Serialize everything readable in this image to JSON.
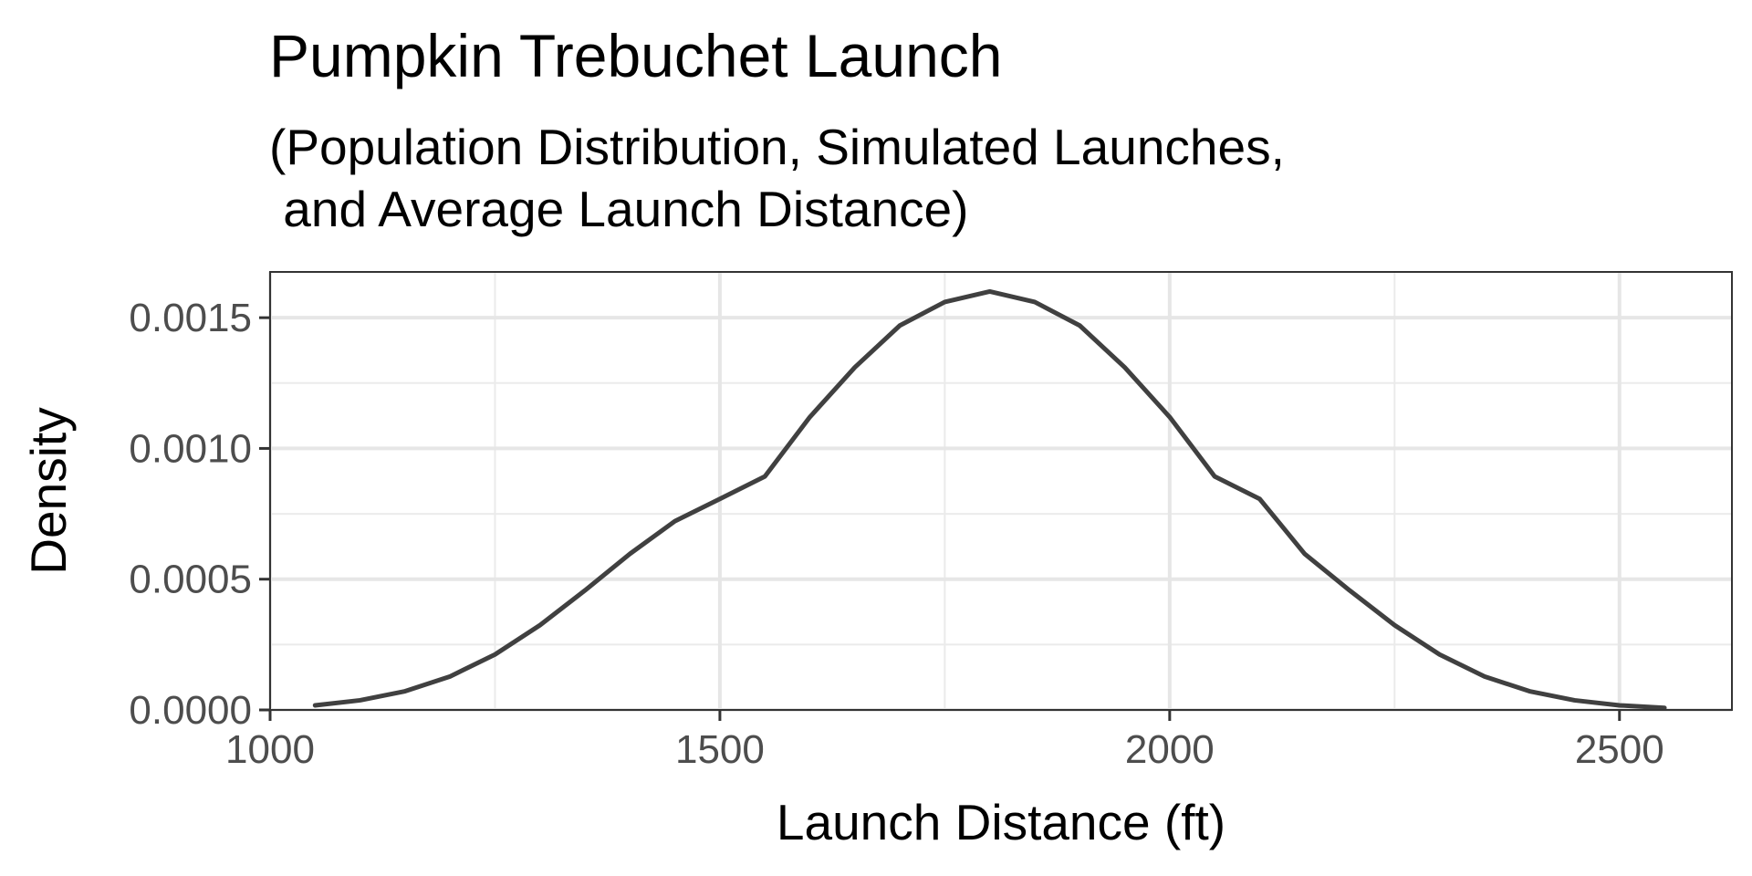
{
  "chart_data": {
    "type": "line",
    "title": "Pumpkin Trebuchet Launch",
    "subtitle_lines": [
      "(Population Distribution, Simulated Launches,",
      " and Average Launch Distance)"
    ],
    "xlabel": "Launch Distance (ft)",
    "ylabel": "Density",
    "xlim": [
      1000,
      2625
    ],
    "ylim": [
      0,
      0.001675
    ],
    "xticks": [
      1000,
      1500,
      2000,
      2500
    ],
    "xtick_labels": [
      "1000",
      "1500",
      "2000",
      "2500"
    ],
    "yticks": [
      0,
      0.0005,
      0.001,
      0.0015
    ],
    "ytick_labels": [
      "0.0000",
      "0.0005",
      "0.0010",
      "0.0015"
    ],
    "grid": true,
    "series": [
      {
        "x": [
          1050,
          1100,
          1150,
          1200,
          1250,
          1300,
          1350,
          1400,
          1450,
          1500,
          1550,
          1600,
          1650,
          1700,
          1750,
          1800,
          1850,
          1900,
          1950,
          2000,
          2050,
          2100,
          2150,
          2200,
          2250,
          2300,
          2350,
          2400,
          2450,
          2500,
          2550
        ],
        "y": [
          1.75e-05,
          3.68e-05,
          7.14e-05,
          0.000128,
          0.000212,
          0.000324,
          0.000457,
          0.000597,
          0.000722,
          0.000807,
          0.000893,
          0.00112,
          0.00131,
          0.00147,
          0.00156,
          0.0016,
          0.00156,
          0.00147,
          0.00131,
          0.00112,
          0.000893,
          0.000807,
          0.000597,
          0.000457,
          0.000324,
          0.000212,
          0.000128,
          7.14e-05,
          3.68e-05,
          1.75e-05,
          8e-06
        ],
        "color": "#404040"
      }
    ]
  }
}
